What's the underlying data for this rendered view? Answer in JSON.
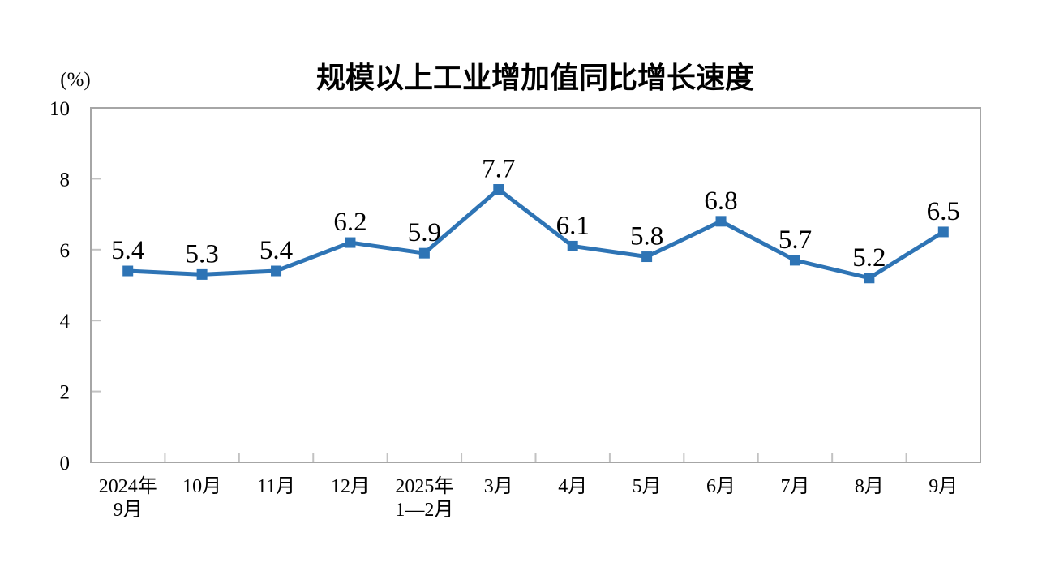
{
  "page": {
    "background": "#FFFFFF"
  },
  "chart_data": {
    "type": "line",
    "title": "规模以上工业增加值同比增长速度",
    "ylabel": "(%)",
    "xlabel": "",
    "categories": [
      "2024年\n9月",
      "10月",
      "11月",
      "12月",
      "2025年\n1—2月",
      "3月",
      "4月",
      "5月",
      "6月",
      "7月",
      "8月",
      "9月"
    ],
    "values": [
      5.4,
      5.3,
      5.4,
      6.2,
      5.9,
      7.7,
      6.1,
      5.8,
      6.8,
      5.7,
      5.2,
      6.5
    ],
    "data_labels": [
      "5.4",
      "5.3",
      "5.4",
      "6.2",
      "5.9",
      "7.7",
      "6.1",
      "5.8",
      "6.8",
      "5.7",
      "5.2",
      "6.5"
    ],
    "ylim": [
      0,
      10
    ],
    "yticks": [
      0,
      2,
      4,
      6,
      8,
      10
    ],
    "grid": false,
    "legend": "none",
    "marker": "square",
    "colors": {
      "line": "#2E74B5",
      "marker": "#2E74B5",
      "plot_border": "#A6A6A6",
      "inner_tick": "#C2C2C2",
      "text": "#000000",
      "background": "#FFFFFF"
    }
  }
}
